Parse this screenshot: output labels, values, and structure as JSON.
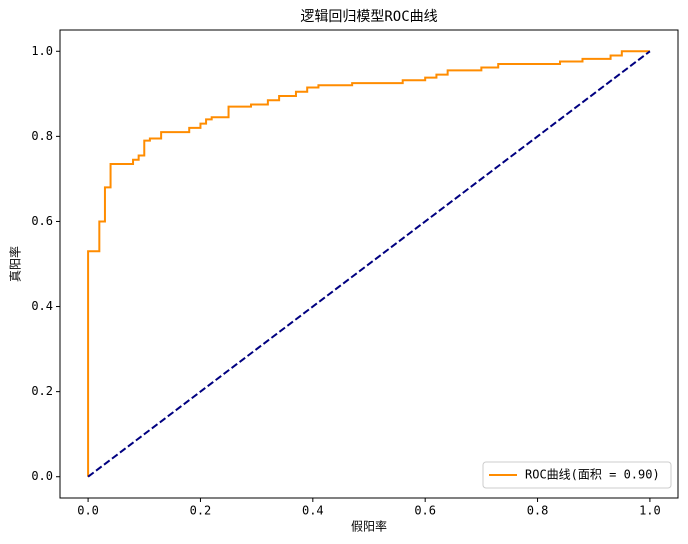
{
  "chart_data": {
    "type": "line",
    "title": "逻辑回归模型ROC曲线",
    "x_label": "假阳率",
    "y_label": "真阳率",
    "xlim": [
      -0.05,
      1.05
    ],
    "ylim": [
      -0.05,
      1.05
    ],
    "xticks": [
      {
        "value": 0,
        "label": "0.0"
      },
      0.2,
      0.4,
      0.6,
      0.8,
      {
        "value": 1,
        "label": "1.0"
      }
    ],
    "yticks": [
      {
        "value": 0,
        "label": "0.0"
      },
      0.2,
      0.4,
      0.6,
      0.8,
      {
        "value": 1,
        "label": "1.0"
      }
    ],
    "legend": "lower right",
    "series": [
      {
        "name": "ROC曲线(面积 = 0.90)",
        "color": "#ff8c00",
        "linestyle": "solid",
        "x": [
          0,
          0,
          0.02,
          0.02,
          0.03,
          0.03,
          0.04,
          0.04,
          0.08,
          0.08,
          0.09,
          0.09,
          0.1,
          0.1,
          0.11,
          0.11,
          0.13,
          0.13,
          0.18,
          0.18,
          0.2,
          0.2,
          0.21,
          0.21,
          0.22,
          0.22,
          0.25,
          0.25,
          0.29,
          0.29,
          0.32,
          0.32,
          0.34,
          0.34,
          0.37,
          0.37,
          0.39,
          0.39,
          0.41,
          0.41,
          0.47,
          0.47,
          0.56,
          0.56,
          0.6,
          0.6,
          0.62,
          0.62,
          0.64,
          0.64,
          0.7,
          0.7,
          0.73,
          0.73,
          0.84,
          0.84,
          0.88,
          0.88,
          0.93,
          0.93,
          0.95,
          0.95,
          1
        ],
        "values": [
          0,
          0.53,
          0.53,
          0.6,
          0.6,
          0.68,
          0.68,
          0.735,
          0.735,
          0.745,
          0.745,
          0.755,
          0.755,
          0.79,
          0.79,
          0.795,
          0.795,
          0.81,
          0.81,
          0.82,
          0.82,
          0.83,
          0.83,
          0.84,
          0.84,
          0.845,
          0.845,
          0.87,
          0.87,
          0.875,
          0.875,
          0.885,
          0.885,
          0.895,
          0.895,
          0.905,
          0.905,
          0.915,
          0.915,
          0.92,
          0.92,
          0.925,
          0.925,
          0.932,
          0.932,
          0.938,
          0.938,
          0.945,
          0.945,
          0.955,
          0.955,
          0.962,
          0.962,
          0.97,
          0.97,
          0.976,
          0.976,
          0.982,
          0.982,
          0.99,
          0.99,
          1,
          1
        ]
      },
      {
        "color": "#000080",
        "linestyle": "dashed",
        "x": [
          0,
          1
        ],
        "values": [
          0,
          1
        ]
      }
    ]
  }
}
